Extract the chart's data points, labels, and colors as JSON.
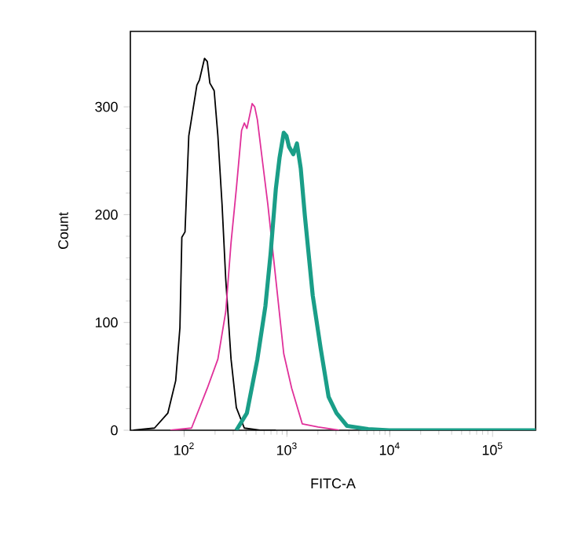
{
  "chart_data": {
    "type": "line",
    "xlabel": "FITC-A",
    "ylabel": "Count",
    "log": "x",
    "xlim": [
      30,
      262144
    ],
    "ylim": [
      0,
      370
    ],
    "xticks": [
      {
        "value": 100,
        "label": "10$^{2}$"
      },
      {
        "value": 1000,
        "label": "10$^{3}$"
      },
      {
        "value": 10000,
        "label": "10$^{4}$"
      },
      {
        "value": 100000,
        "label": "10$^{5}$"
      }
    ],
    "yticks": [
      0,
      100,
      200,
      300
    ],
    "grid": false,
    "line_style": "solid",
    "series": [
      {
        "color": "#000000",
        "x": [
          32,
          51.5,
          69.5,
          82.8,
          91,
          95,
          102,
          111,
          133,
          141,
          158,
          168,
          178,
          196,
          213,
          234,
          254,
          286,
          322,
          385,
          547,
          780
        ],
        "values": [
          0,
          2,
          16,
          46,
          95,
          179,
          184,
          273,
          320,
          325,
          345,
          342,
          322,
          315,
          273,
          209,
          140,
          66,
          21,
          2,
          0,
          0
        ]
      },
      {
        "color": "#e0309a",
        "x": [
          73.6,
          118,
          168,
          213,
          254,
          286,
          322,
          362,
          385,
          408,
          459,
          486,
          516,
          581,
          653,
          780,
          931,
          1112,
          1409,
          2011,
          3221
        ],
        "values": [
          0,
          2,
          39,
          66,
          110,
          174,
          224,
          278,
          285,
          280,
          303,
          300,
          288,
          248,
          209,
          140,
          71,
          39,
          6,
          3,
          0
        ]
      },
      {
        "color": "#1a9e88",
        "x": [
          322,
          408,
          516,
          617,
          694,
          780,
          848,
          931,
          989,
          1047,
          1153,
          1251,
          1362,
          1494,
          1782,
          2128,
          2541,
          3034,
          3844,
          6170,
          9890,
          20100,
          262144
        ],
        "values": [
          0,
          16,
          66,
          115,
          164,
          224,
          253,
          276,
          273,
          263,
          256,
          266,
          243,
          199,
          125,
          76,
          31,
          16,
          4,
          1,
          0,
          0,
          0
        ]
      }
    ]
  }
}
